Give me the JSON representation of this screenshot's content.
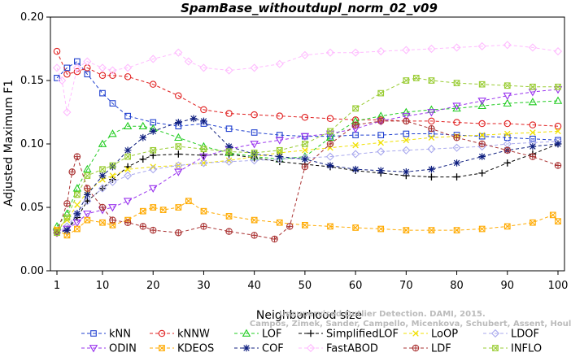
{
  "chart_data": {
    "type": "line",
    "title": "SpamBase_withoutdupl_norm_02_v09",
    "xlabel": "Neighborhood size",
    "ylabel": "Adjusted Maximum F1",
    "xlim": [
      1,
      100
    ],
    "ylim": [
      0.0,
      0.2
    ],
    "xticks": [
      1,
      10,
      20,
      30,
      40,
      50,
      60,
      70,
      80,
      90,
      100
    ],
    "xtick_labels": [
      "1",
      "10",
      "20",
      "30",
      "40",
      "50",
      "60",
      "70",
      "80",
      "90",
      "100"
    ],
    "yticks": [
      0.0,
      0.05,
      0.1,
      0.15,
      0.2
    ],
    "ytick_labels": [
      "0.00",
      "0.05",
      "0.10",
      "0.15",
      "0.20"
    ],
    "grid": false,
    "legend_position": "bottom",
    "watermark": [
      "Unsupervised Outlier Detection. DAMI, 2015.",
      "Campos, Zimek, Sander, Campello, Micenkova, Schubert, Assent, Houle"
    ],
    "series": [
      {
        "name": "kNN",
        "color": "#1f3fcf",
        "marker": "square",
        "x": [
          1,
          3,
          5,
          7,
          10,
          12,
          15,
          20,
          25,
          30,
          35,
          40,
          45,
          50,
          55,
          60,
          65,
          70,
          75,
          80,
          85,
          90,
          95,
          100
        ],
        "y": [
          0.152,
          0.16,
          0.165,
          0.155,
          0.14,
          0.132,
          0.122,
          0.117,
          0.114,
          0.116,
          0.112,
          0.109,
          0.107,
          0.106,
          0.106,
          0.107,
          0.107,
          0.108,
          0.108,
          0.107,
          0.106,
          0.105,
          0.104,
          0.103
        ]
      },
      {
        "name": "kNNW",
        "color": "#e02020",
        "marker": "circle",
        "x": [
          1,
          3,
          5,
          7,
          10,
          12,
          15,
          20,
          25,
          30,
          35,
          40,
          45,
          50,
          55,
          60,
          65,
          70,
          75,
          80,
          85,
          90,
          95,
          100
        ],
        "y": [
          0.173,
          0.155,
          0.157,
          0.16,
          0.154,
          0.154,
          0.153,
          0.147,
          0.138,
          0.127,
          0.124,
          0.123,
          0.122,
          0.121,
          0.12,
          0.119,
          0.119,
          0.118,
          0.118,
          0.117,
          0.116,
          0.116,
          0.115,
          0.114
        ]
      },
      {
        "name": "LOF",
        "color": "#22cc22",
        "marker": "triangle-up",
        "x": [
          1,
          3,
          5,
          7,
          10,
          12,
          15,
          18,
          20,
          25,
          30,
          35,
          40,
          45,
          50,
          55,
          60,
          65,
          70,
          75,
          80,
          85,
          90,
          95,
          100
        ],
        "y": [
          0.035,
          0.045,
          0.065,
          0.08,
          0.1,
          0.108,
          0.114,
          0.114,
          0.112,
          0.105,
          0.098,
          0.093,
          0.09,
          0.088,
          0.09,
          0.105,
          0.118,
          0.122,
          0.125,
          0.127,
          0.128,
          0.13,
          0.132,
          0.133,
          0.134
        ]
      },
      {
        "name": "SimplifiedLOF",
        "color": "#000000",
        "marker": "plus",
        "x": [
          1,
          3,
          5,
          7,
          10,
          12,
          15,
          18,
          20,
          25,
          30,
          35,
          40,
          45,
          50,
          55,
          60,
          65,
          70,
          75,
          80,
          85,
          90,
          95,
          100
        ],
        "y": [
          0.03,
          0.032,
          0.042,
          0.055,
          0.065,
          0.072,
          0.082,
          0.088,
          0.091,
          0.092,
          0.091,
          0.092,
          0.089,
          0.086,
          0.084,
          0.082,
          0.079,
          0.077,
          0.075,
          0.074,
          0.074,
          0.077,
          0.085,
          0.092,
          0.1
        ]
      },
      {
        "name": "LoOP",
        "color": "#f0e000",
        "marker": "cross",
        "x": [
          1,
          3,
          5,
          7,
          10,
          12,
          15,
          20,
          25,
          30,
          35,
          40,
          45,
          50,
          55,
          60,
          65,
          70,
          75,
          80,
          85,
          90,
          95,
          100
        ],
        "y": [
          0.033,
          0.04,
          0.052,
          0.062,
          0.072,
          0.075,
          0.08,
          0.082,
          0.083,
          0.085,
          0.087,
          0.09,
          0.093,
          0.095,
          0.097,
          0.099,
          0.101,
          0.103,
          0.105,
          0.106,
          0.107,
          0.108,
          0.109,
          0.11
        ]
      },
      {
        "name": "LDOF",
        "color": "#aaaaee",
        "marker": "diamond",
        "x": [
          1,
          3,
          5,
          7,
          10,
          12,
          15,
          20,
          25,
          30,
          35,
          40,
          45,
          50,
          55,
          60,
          65,
          70,
          75,
          80,
          85,
          90,
          95,
          100
        ],
        "y": [
          0.03,
          0.035,
          0.045,
          0.055,
          0.065,
          0.07,
          0.075,
          0.08,
          0.083,
          0.085,
          0.086,
          0.087,
          0.088,
          0.089,
          0.09,
          0.092,
          0.094,
          0.095,
          0.096,
          0.097,
          0.098,
          0.1,
          0.101,
          0.102
        ]
      },
      {
        "name": "ODIN",
        "color": "#9933ee",
        "marker": "triangle-down",
        "x": [
          1,
          3,
          5,
          7,
          10,
          12,
          15,
          20,
          25,
          30,
          35,
          40,
          45,
          50,
          55,
          60,
          65,
          70,
          75,
          80,
          85,
          90,
          95,
          100
        ],
        "y": [
          0.03,
          0.033,
          0.038,
          0.045,
          0.048,
          0.05,
          0.055,
          0.065,
          0.078,
          0.09,
          0.096,
          0.1,
          0.103,
          0.106,
          0.108,
          0.112,
          0.118,
          0.122,
          0.125,
          0.13,
          0.134,
          0.138,
          0.141,
          0.143
        ]
      },
      {
        "name": "KDEOS",
        "color": "#ffaa00",
        "marker": "square-x",
        "x": [
          1,
          3,
          5,
          7,
          10,
          12,
          15,
          18,
          20,
          22,
          25,
          27,
          30,
          35,
          40,
          45,
          50,
          55,
          60,
          65,
          70,
          75,
          80,
          85,
          90,
          95,
          99,
          100
        ],
        "y": [
          0.032,
          0.028,
          0.033,
          0.04,
          0.038,
          0.036,
          0.04,
          0.047,
          0.05,
          0.048,
          0.05,
          0.055,
          0.047,
          0.043,
          0.04,
          0.038,
          0.036,
          0.035,
          0.034,
          0.033,
          0.032,
          0.032,
          0.032,
          0.033,
          0.035,
          0.038,
          0.044,
          0.039
        ]
      },
      {
        "name": "COF",
        "color": "#102080",
        "marker": "star",
        "x": [
          1,
          3,
          5,
          7,
          10,
          12,
          15,
          18,
          20,
          25,
          28,
          30,
          35,
          40,
          45,
          50,
          55,
          60,
          65,
          70,
          75,
          80,
          85,
          90,
          95,
          100
        ],
        "y": [
          0.03,
          0.032,
          0.045,
          0.06,
          0.075,
          0.082,
          0.095,
          0.105,
          0.11,
          0.117,
          0.12,
          0.118,
          0.098,
          0.092,
          0.09,
          0.088,
          0.083,
          0.08,
          0.079,
          0.078,
          0.08,
          0.085,
          0.09,
          0.095,
          0.098,
          0.1
        ]
      },
      {
        "name": "FastABOD",
        "color": "#ffbbff",
        "marker": "diamond",
        "x": [
          1,
          2,
          3,
          5,
          7,
          10,
          12,
          15,
          20,
          25,
          27,
          30,
          35,
          40,
          45,
          50,
          55,
          60,
          65,
          70,
          75,
          80,
          85,
          90,
          95,
          100
        ],
        "y": [
          0.16,
          0.15,
          0.125,
          0.16,
          0.165,
          0.16,
          0.158,
          0.16,
          0.167,
          0.172,
          0.165,
          0.16,
          0.158,
          0.16,
          0.163,
          0.17,
          0.172,
          0.172,
          0.173,
          0.174,
          0.175,
          0.176,
          0.177,
          0.178,
          0.176,
          0.173
        ]
      },
      {
        "name": "LDF",
        "color": "#aa3333",
        "marker": "circle-plus",
        "x": [
          1,
          3,
          4,
          5,
          7,
          10,
          12,
          15,
          18,
          20,
          25,
          30,
          35,
          40,
          44,
          47,
          50,
          55,
          60,
          65,
          70,
          75,
          80,
          85,
          90,
          95,
          100
        ],
        "y": [
          0.03,
          0.053,
          0.078,
          0.09,
          0.065,
          0.05,
          0.04,
          0.038,
          0.035,
          0.032,
          0.03,
          0.035,
          0.031,
          0.028,
          0.025,
          0.035,
          0.082,
          0.1,
          0.115,
          0.118,
          0.118,
          0.112,
          0.105,
          0.1,
          0.095,
          0.09,
          0.083
        ]
      },
      {
        "name": "INFLO",
        "color": "#99cc33",
        "marker": "square-x",
        "x": [
          1,
          3,
          5,
          7,
          10,
          12,
          15,
          20,
          25,
          30,
          35,
          40,
          45,
          50,
          55,
          60,
          65,
          70,
          72,
          75,
          80,
          85,
          90,
          95,
          100
        ],
        "y": [
          0.03,
          0.042,
          0.06,
          0.075,
          0.08,
          0.083,
          0.09,
          0.095,
          0.098,
          0.096,
          0.094,
          0.093,
          0.095,
          0.1,
          0.11,
          0.128,
          0.14,
          0.15,
          0.152,
          0.15,
          0.148,
          0.147,
          0.146,
          0.145,
          0.145
        ]
      }
    ]
  }
}
